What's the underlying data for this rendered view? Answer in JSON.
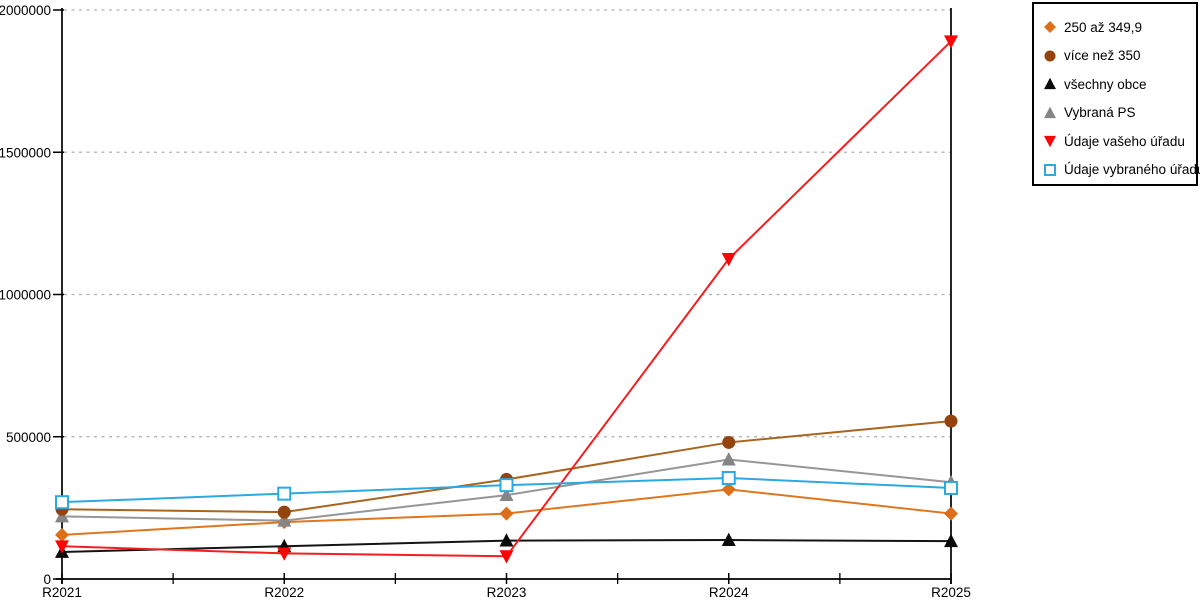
{
  "chart_data": {
    "type": "line",
    "title": "",
    "xlabel": "",
    "ylabel": "",
    "x_categories": [
      "R2021",
      "R2022",
      "R2023",
      "R2024",
      "R2025"
    ],
    "ylim": [
      0,
      2000000
    ],
    "y_ticks": [
      0,
      500000,
      1000000,
      1500000,
      2000000
    ],
    "grid": "horizontal-dashed",
    "legend_position": "top-right",
    "background_color": "#FFFFFF",
    "axis_color": "#000000",
    "grid_color": "#B0B0B0",
    "series": [
      {
        "name": "250 až 349,9",
        "marker": "diamond",
        "color": "#E0761E",
        "marker_color": "#DD6E1A",
        "values": [
          155000,
          200000,
          230000,
          315000,
          230000
        ]
      },
      {
        "name": "více než 350",
        "marker": "circle",
        "color": "#A9641E",
        "marker_color": "#93430B",
        "values": [
          245000,
          235000,
          350000,
          480000,
          555000
        ]
      },
      {
        "name": "všechny obce",
        "marker": "triangle-up",
        "color": "#141414",
        "marker_color": "#0A0A0A",
        "values": [
          95000,
          115000,
          135000,
          137000,
          133000
        ]
      },
      {
        "name": "Vybraná PS",
        "marker": "triangle-up",
        "color": "#969696",
        "marker_color": "#858585",
        "values": [
          220000,
          205000,
          295000,
          420000,
          340000
        ]
      },
      {
        "name": "Údaje vašeho úřadu",
        "marker": "triangle-down",
        "color": "#F51D1D",
        "marker_color": "#FA0505",
        "values": [
          115000,
          90000,
          80000,
          1125000,
          1890000
        ]
      },
      {
        "name": "Údaje vybraného úřadu",
        "marker": "square-open",
        "color": "#2BA9E1",
        "marker_color": "#2BA9E1",
        "values": [
          270000,
          300000,
          330000,
          355000,
          320000
        ]
      }
    ],
    "draw_order": [
      0,
      3,
      1,
      2,
      4,
      5
    ]
  }
}
